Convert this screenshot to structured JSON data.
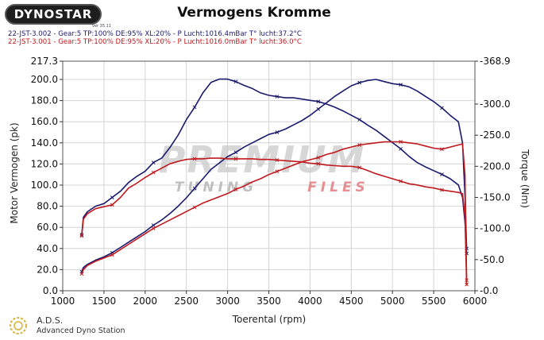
{
  "header": {
    "logo_text": "DYNOSTAR",
    "logo_sub": "ver 35.11",
    "title": "Vermogens Kromme",
    "runs": [
      {
        "label": "22-JST-3.002 - Gear:5 TP:100% DE:95% XL:20%  - P Lucht:1016.4mBar T° lucht:37.2°C",
        "color": "#1a1a6e"
      },
      {
        "label": "22-JST-3.001 - Gear:5 TP:100% DE:95% XL:20%  - P Lucht:1016.0mBar T° lucht:36.0°C",
        "color": "#c0191e"
      }
    ]
  },
  "watermark": {
    "line1": "PREMIUM",
    "line2a": "TUNING",
    "line2b": "FILES"
  },
  "footer": {
    "title": "A.D.S.",
    "subtitle": "Advanced Dyno Station"
  },
  "chart_data": {
    "type": "line",
    "xlabel": "Toerental (rpm)",
    "ylabel": "Motor Vermogen (pk)",
    "y2label": "Torque (Nm)",
    "xlim": [
      1000,
      6000
    ],
    "ylim": [
      0,
      217.3
    ],
    "y2lim": [
      0,
      368.9
    ],
    "x_ticks": [
      1000,
      1500,
      2000,
      2500,
      3000,
      3500,
      4000,
      4500,
      5000,
      5500,
      6000
    ],
    "y_ticks": [
      "0.0",
      "20.0",
      "40.0",
      "60.0",
      "80.0",
      "100.0",
      "120.0",
      "140.0",
      "160.0",
      "180.0",
      "200.0",
      "217.3"
    ],
    "y_tick_values": [
      0,
      20,
      40,
      60,
      80,
      100,
      120,
      140,
      160,
      180,
      200,
      217.3
    ],
    "y2_ticks": [
      "0.0",
      "50.0",
      "100.0",
      "150.0",
      "200.0",
      "250.0",
      "300.0",
      "368.9"
    ],
    "y2_tick_values": [
      0,
      50,
      100,
      150,
      200,
      250,
      300,
      368.9
    ],
    "grid": true,
    "series": [
      {
        "axis": "y",
        "color": "#1a1a6e",
        "x": [
          1230,
          1250,
          1300,
          1400,
          1500,
          1600,
          1700,
          1800,
          1900,
          2000,
          2100,
          2200,
          2300,
          2400,
          2500,
          2600,
          2700,
          2800,
          2900,
          3000,
          3100,
          3200,
          3300,
          3400,
          3500,
          3600,
          3700,
          3800,
          3900,
          4000,
          4100,
          4200,
          4300,
          4400,
          4500,
          4600,
          4700,
          4800,
          4900,
          5000,
          5100,
          5200,
          5300,
          5400,
          5500,
          5600,
          5700,
          5800,
          5850,
          5880,
          5900
        ],
        "y": [
          18,
          22,
          25,
          29,
          32,
          36,
          41,
          46,
          51,
          56,
          62,
          67,
          73,
          80,
          88,
          97,
          106,
          115,
          121,
          127,
          131,
          136,
          140,
          144,
          148,
          150,
          153,
          157,
          161,
          166,
          172,
          178,
          184,
          189,
          194,
          197,
          199,
          200,
          198,
          196,
          195,
          193,
          189,
          184,
          179,
          173,
          166,
          160,
          140,
          90,
          40
        ]
      },
      {
        "axis": "y2",
        "color": "#1a1a6e",
        "x": [
          1230,
          1250,
          1300,
          1400,
          1500,
          1600,
          1700,
          1800,
          1900,
          2000,
          2100,
          2200,
          2300,
          2400,
          2500,
          2600,
          2700,
          2800,
          2900,
          3000,
          3100,
          3200,
          3300,
          3400,
          3500,
          3600,
          3700,
          3800,
          3900,
          4000,
          4100,
          4200,
          4300,
          4400,
          4500,
          4600,
          4700,
          4800,
          4900,
          5000,
          5100,
          5200,
          5300,
          5400,
          5500,
          5600,
          5700,
          5800,
          5850,
          5880,
          5900
        ],
        "y": [
          90,
          118,
          127,
          136,
          140,
          150,
          160,
          174,
          184,
          192,
          206,
          213,
          230,
          250,
          275,
          295,
          318,
          335,
          340,
          340,
          336,
          330,
          325,
          318,
          314,
          312,
          310,
          310,
          308,
          306,
          304,
          300,
          295,
          289,
          282,
          275,
          266,
          258,
          248,
          238,
          228,
          216,
          206,
          199,
          193,
          187,
          180,
          170,
          150,
          110,
          60
        ]
      },
      {
        "axis": "y",
        "color": "#c0191e",
        "x": [
          1230,
          1250,
          1300,
          1400,
          1500,
          1600,
          1700,
          1800,
          1900,
          2000,
          2100,
          2200,
          2300,
          2400,
          2500,
          2600,
          2700,
          2800,
          2900,
          3000,
          3100,
          3200,
          3300,
          3400,
          3500,
          3600,
          3700,
          3800,
          3900,
          4000,
          4100,
          4200,
          4300,
          4400,
          4500,
          4600,
          4700,
          4800,
          4900,
          5000,
          5100,
          5200,
          5300,
          5400,
          5500,
          5600,
          5700,
          5800,
          5850,
          5880,
          5900
        ],
        "y": [
          16,
          20,
          24,
          28,
          31,
          34,
          39,
          44,
          49,
          54,
          59,
          63,
          67,
          71,
          75,
          79,
          83,
          86,
          89,
          92,
          96,
          99,
          103,
          106,
          110,
          113,
          116,
          119,
          122,
          124,
          126,
          129,
          131,
          134,
          136,
          138,
          139,
          140,
          141,
          141,
          141,
          140,
          139,
          137,
          135,
          134,
          136,
          138,
          139,
          110,
          10
        ]
      },
      {
        "axis": "y2",
        "color": "#c0191e",
        "x": [
          1230,
          1250,
          1300,
          1400,
          1500,
          1600,
          1700,
          1800,
          1900,
          2000,
          2100,
          2200,
          2300,
          2400,
          2500,
          2600,
          2700,
          2800,
          2900,
          3000,
          3100,
          3200,
          3300,
          3400,
          3500,
          3600,
          3700,
          3800,
          3900,
          4000,
          4100,
          4200,
          4300,
          4400,
          4500,
          4600,
          4700,
          4800,
          4900,
          5000,
          5100,
          5200,
          5300,
          5400,
          5500,
          5600,
          5700,
          5800,
          5850,
          5880,
          5900
        ],
        "y": [
          88,
          115,
          124,
          132,
          135,
          138,
          150,
          165,
          173,
          182,
          190,
          197,
          204,
          208,
          211,
          212,
          212,
          213,
          213,
          212,
          212,
          212,
          212,
          211,
          211,
          210,
          209,
          208,
          207,
          205,
          204,
          202,
          201,
          200,
          200,
          198,
          193,
          188,
          184,
          180,
          176,
          172,
          170,
          167,
          165,
          162,
          160,
          158,
          156,
          120,
          10
        ]
      }
    ]
  }
}
